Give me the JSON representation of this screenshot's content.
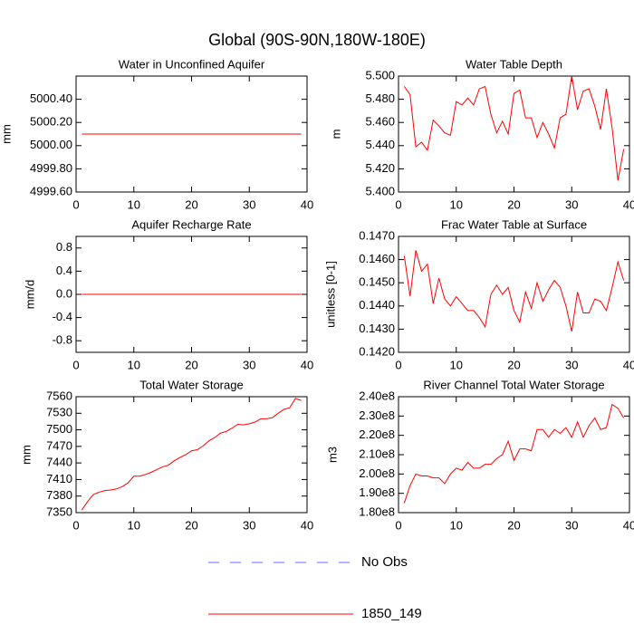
{
  "title": "Global (90S-90N,180W-180E)",
  "legend": [
    {
      "name": "No Obs",
      "color": "#6a6aff",
      "dashed": true
    },
    {
      "name": "1850_149",
      "color": "#ff0000",
      "dashed": false
    }
  ],
  "chart_data": [
    {
      "type": "line",
      "title": "Water in Unconfined Aquifer",
      "y_label": "mm",
      "x": [
        1,
        2,
        3,
        4,
        5,
        6,
        7,
        8,
        9,
        10,
        11,
        12,
        13,
        14,
        15,
        16,
        17,
        18,
        19,
        20,
        21,
        22,
        23,
        24,
        25,
        26,
        27,
        28,
        29,
        30,
        31,
        32,
        33,
        34,
        35,
        36,
        37,
        38,
        39
      ],
      "series": [
        {
          "color": "#ff0000",
          "values": [
            5000.1,
            5000.1,
            5000.1,
            5000.1,
            5000.1,
            5000.1,
            5000.1,
            5000.1,
            5000.1,
            5000.1,
            5000.1,
            5000.1,
            5000.1,
            5000.1,
            5000.1,
            5000.1,
            5000.1,
            5000.1,
            5000.1,
            5000.1,
            5000.1,
            5000.1,
            5000.1,
            5000.1,
            5000.1,
            5000.1,
            5000.1,
            5000.1,
            5000.1,
            5000.1,
            5000.1,
            5000.1,
            5000.1,
            5000.1,
            5000.1,
            5000.1,
            5000.1,
            5000.1,
            5000.1
          ]
        }
      ],
      "xlim": [
        0,
        40
      ],
      "xticks": [
        0,
        10,
        20,
        30,
        40
      ],
      "ylim": [
        4999.6,
        5000.6
      ],
      "yticks": [
        {
          "value": 4999.6,
          "label": "4999.60"
        },
        {
          "value": 4999.8,
          "label": "4999.80"
        },
        {
          "value": 5000,
          "label": "5000.00"
        },
        {
          "value": 5000.2,
          "label": "5000.20"
        },
        {
          "value": 5000.4,
          "label": "5000.40"
        }
      ]
    },
    {
      "type": "line",
      "title": "Water Table Depth",
      "y_label": "m",
      "x": [
        1,
        2,
        3,
        4,
        5,
        6,
        7,
        8,
        9,
        10,
        11,
        12,
        13,
        14,
        15,
        16,
        17,
        18,
        19,
        20,
        21,
        22,
        23,
        24,
        25,
        26,
        27,
        28,
        29,
        30,
        31,
        32,
        33,
        34,
        35,
        36,
        37,
        38,
        39
      ],
      "series": [
        {
          "color": "#ff0000",
          "values": [
            5.491,
            5.484,
            5.439,
            5.443,
            5.436,
            5.462,
            5.457,
            5.451,
            5.449,
            5.478,
            5.475,
            5.481,
            5.475,
            5.489,
            5.491,
            5.467,
            5.451,
            5.461,
            5.45,
            5.485,
            5.488,
            5.464,
            5.464,
            5.447,
            5.46,
            5.45,
            5.438,
            5.464,
            5.467,
            5.5,
            5.471,
            5.487,
            5.489,
            5.474,
            5.454,
            5.489,
            5.455,
            5.41,
            5.437
          ]
        }
      ],
      "xlim": [
        0,
        40
      ],
      "xticks": [
        0,
        10,
        20,
        30,
        40
      ],
      "ylim": [
        5.4,
        5.5
      ],
      "yticks": [
        {
          "value": 5.4,
          "label": "5.400"
        },
        {
          "value": 5.42,
          "label": "5.420"
        },
        {
          "value": 5.44,
          "label": "5.440"
        },
        {
          "value": 5.46,
          "label": "5.460"
        },
        {
          "value": 5.48,
          "label": "5.480"
        },
        {
          "value": 5.5,
          "label": "5.500"
        }
      ]
    },
    {
      "type": "line",
      "title": "Aquifer Recharge Rate",
      "y_label": "mm/d",
      "x": [
        1,
        2,
        3,
        4,
        5,
        6,
        7,
        8,
        9,
        10,
        11,
        12,
        13,
        14,
        15,
        16,
        17,
        18,
        19,
        20,
        21,
        22,
        23,
        24,
        25,
        26,
        27,
        28,
        29,
        30,
        31,
        32,
        33,
        34,
        35,
        36,
        37,
        38,
        39
      ],
      "series": [
        {
          "color": "#ff0000",
          "values": [
            0,
            0,
            0,
            0,
            0,
            0,
            0,
            0,
            0,
            0,
            0,
            0,
            0,
            0,
            0,
            0,
            0,
            0,
            0,
            0,
            0,
            0,
            0,
            0,
            0,
            0,
            0,
            0,
            0,
            0,
            0,
            0,
            0,
            0,
            0,
            0,
            0,
            0,
            0
          ]
        }
      ],
      "xlim": [
        0,
        40
      ],
      "xticks": [
        0,
        10,
        20,
        30,
        40
      ],
      "ylim": [
        -1,
        1
      ],
      "yticks": [
        -0.8,
        -0.4,
        {
          "value": 0,
          "label": "0.0"
        },
        0.4,
        0.8
      ]
    },
    {
      "type": "line",
      "title": "Frac Water Table at Surface",
      "y_label": "unitless [0-1]",
      "x": [
        1,
        2,
        3,
        4,
        5,
        6,
        7,
        8,
        9,
        10,
        11,
        12,
        13,
        14,
        15,
        16,
        17,
        18,
        19,
        20,
        21,
        22,
        23,
        24,
        25,
        26,
        27,
        28,
        29,
        30,
        31,
        32,
        33,
        34,
        35,
        36,
        37,
        38,
        39
      ],
      "series": [
        {
          "color": "#ff0000",
          "values": [
            0.14616,
            0.14442,
            0.1464,
            0.1455,
            0.1458,
            0.1441,
            0.1452,
            0.1443,
            0.144,
            0.1444,
            0.1441,
            0.1438,
            0.1438,
            0.1435,
            0.1431,
            0.1445,
            0.1449,
            0.1445,
            0.1448,
            0.1438,
            0.1433,
            0.1446,
            0.1439,
            0.145,
            0.1442,
            0.1447,
            0.1451,
            0.1448,
            0.144,
            0.1429,
            0.1446,
            0.1437,
            0.1437,
            0.1443,
            0.1442,
            0.1438,
            0.1448,
            0.1459,
            0.1451
          ]
        }
      ],
      "xlim": [
        0,
        40
      ],
      "xticks": [
        0,
        10,
        20,
        30,
        40
      ],
      "ylim": [
        0.142,
        0.147
      ],
      "yticks": [
        {
          "value": 0.142,
          "label": "0.1420"
        },
        {
          "value": 0.143,
          "label": "0.1430"
        },
        {
          "value": 0.144,
          "label": "0.1440"
        },
        {
          "value": 0.145,
          "label": "0.1450"
        },
        {
          "value": 0.146,
          "label": "0.1460"
        },
        {
          "value": 0.147,
          "label": "0.1470"
        }
      ]
    },
    {
      "type": "line",
      "title": "Total Water Storage",
      "y_label": "mm",
      "x": [
        1,
        2,
        3,
        4,
        5,
        6,
        7,
        8,
        9,
        10,
        11,
        12,
        13,
        14,
        15,
        16,
        17,
        18,
        19,
        20,
        21,
        22,
        23,
        24,
        25,
        26,
        27,
        28,
        29,
        30,
        31,
        32,
        33,
        34,
        35,
        36,
        37,
        38,
        39
      ],
      "series": [
        {
          "color": "#ff0000",
          "values": [
            7355,
            7370,
            7383,
            7387,
            7390,
            7391,
            7393,
            7397,
            7404,
            7416,
            7416,
            7419,
            7423,
            7428,
            7433,
            7436,
            7444,
            7450,
            7455,
            7462,
            7464,
            7471,
            7480,
            7486,
            7494,
            7497,
            7503,
            7510,
            7509,
            7511,
            7514,
            7520,
            7520,
            7522,
            7530,
            7537,
            7540,
            7557,
            7553
          ]
        }
      ],
      "xlim": [
        0,
        40
      ],
      "xticks": [
        0,
        10,
        20,
        30,
        40
      ],
      "ylim": [
        7350,
        7560
      ],
      "yticks": [
        7350,
        7380,
        7410,
        7440,
        7470,
        7500,
        7530,
        7560
      ]
    },
    {
      "type": "line",
      "title": "River Channel Total Water Storage",
      "y_label": "m3",
      "x": [
        1,
        2,
        3,
        4,
        5,
        6,
        7,
        8,
        9,
        10,
        11,
        12,
        13,
        14,
        15,
        16,
        17,
        18,
        19,
        20,
        21,
        22,
        23,
        24,
        25,
        26,
        27,
        28,
        29,
        30,
        31,
        32,
        33,
        34,
        35,
        36,
        37,
        38,
        39
      ],
      "series": [
        {
          "color": "#ff0000",
          "values": [
            185000000,
            194000000,
            200000000,
            199000000,
            199000000,
            198000000,
            198000000,
            195000000,
            200000000,
            203000000,
            202000000,
            206000000,
            203000000,
            203000000,
            205000000,
            205000000,
            208000000,
            210000000,
            217000000,
            207000000,
            213000000,
            213000000,
            212000000,
            223000000,
            223000000,
            219000000,
            223000000,
            221000000,
            224000000,
            219000000,
            227000000,
            219000000,
            225000000,
            229000000,
            223000000,
            224000000,
            236000000,
            234000000,
            229000000
          ]
        }
      ],
      "xlim": [
        0,
        40
      ],
      "xticks": [
        0,
        10,
        20,
        30,
        40
      ],
      "ylim": [
        180000000,
        240000000
      ],
      "yticks": [
        {
          "value": 180000000,
          "label": "1.80e8"
        },
        {
          "value": 190000000,
          "label": "1.90e8"
        },
        {
          "value": 200000000,
          "label": "2.00e8"
        },
        {
          "value": 210000000,
          "label": "2.10e8"
        },
        {
          "value": 220000000,
          "label": "2.20e8"
        },
        {
          "value": 230000000,
          "label": "2.30e8"
        },
        {
          "value": 240000000,
          "label": "2.40e8"
        }
      ]
    }
  ]
}
